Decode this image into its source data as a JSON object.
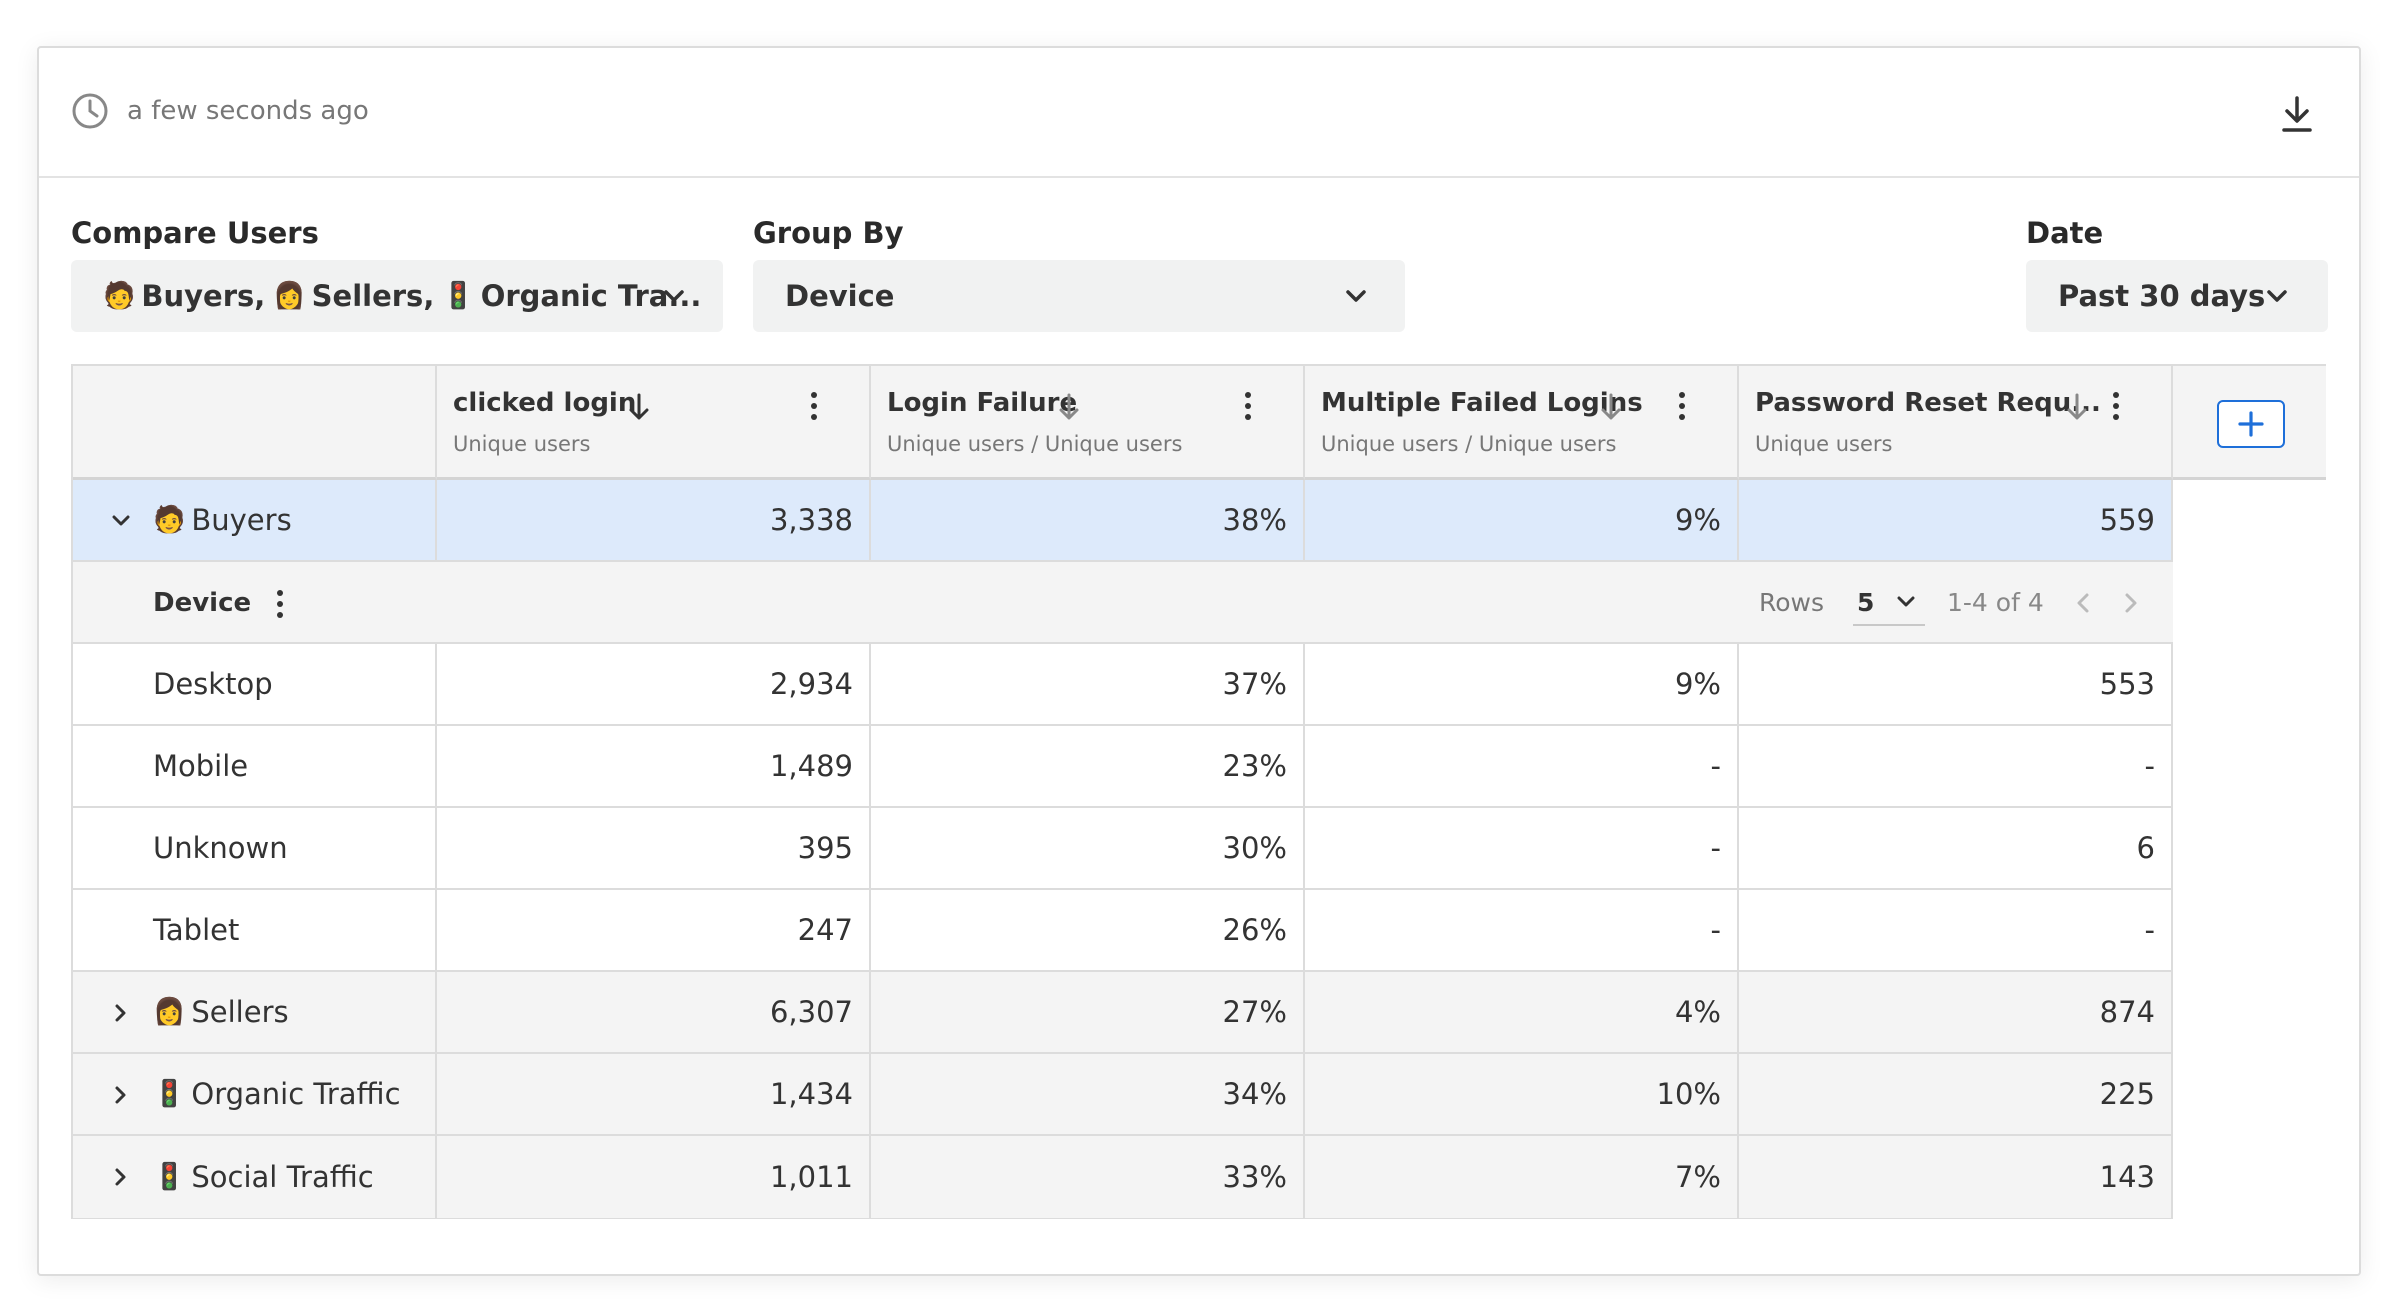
{
  "header": {
    "updated_text": "a few seconds ago"
  },
  "controls": {
    "compare_users": {
      "label": "Compare Users",
      "value": "Buyers, Sellers, Organic Tra...",
      "seg1": "Buyers,",
      "seg2": "Sellers,",
      "seg3": "Organic Tra..."
    },
    "group_by": {
      "label": "Group By",
      "value": "Device"
    },
    "date": {
      "label": "Date",
      "value": "Past 30 days"
    }
  },
  "columns": [
    {
      "title": "clicked login",
      "subtitle": "Unique users"
    },
    {
      "title": "Login Failure",
      "subtitle": "Unique users / Unique users"
    },
    {
      "title": "Multiple Failed Logins",
      "subtitle": "Unique users / Unique users"
    },
    {
      "title": "Password Reset Requ...",
      "subtitle": "Unique users"
    }
  ],
  "groups": {
    "buyers": {
      "name": "Buyers",
      "values": [
        "3,338",
        "38%",
        "9%",
        "559"
      ]
    },
    "sellers": {
      "name": "Sellers",
      "values": [
        "6,307",
        "27%",
        "4%",
        "874"
      ]
    },
    "organic": {
      "name": "Organic Traffic",
      "values": [
        "1,434",
        "34%",
        "10%",
        "225"
      ]
    },
    "social": {
      "name": "Social Traffic",
      "values": [
        "1,011",
        "33%",
        "7%",
        "143"
      ]
    }
  },
  "subtable": {
    "group_label": "Device",
    "rows_label": "Rows",
    "rows_value": "5",
    "range": "1-4 of 4",
    "rows": [
      {
        "name": "Desktop",
        "values": [
          "2,934",
          "37%",
          "9%",
          "553"
        ]
      },
      {
        "name": "Mobile",
        "values": [
          "1,489",
          "23%",
          "-",
          "-"
        ]
      },
      {
        "name": "Unknown",
        "values": [
          "395",
          "30%",
          "-",
          "6"
        ]
      },
      {
        "name": "Tablet",
        "values": [
          "247",
          "26%",
          "-",
          "-"
        ]
      }
    ]
  },
  "colors": {
    "accent": "#1e6fd9",
    "selected_row": "#ddeafb",
    "header_bg": "#f4f4f4"
  }
}
